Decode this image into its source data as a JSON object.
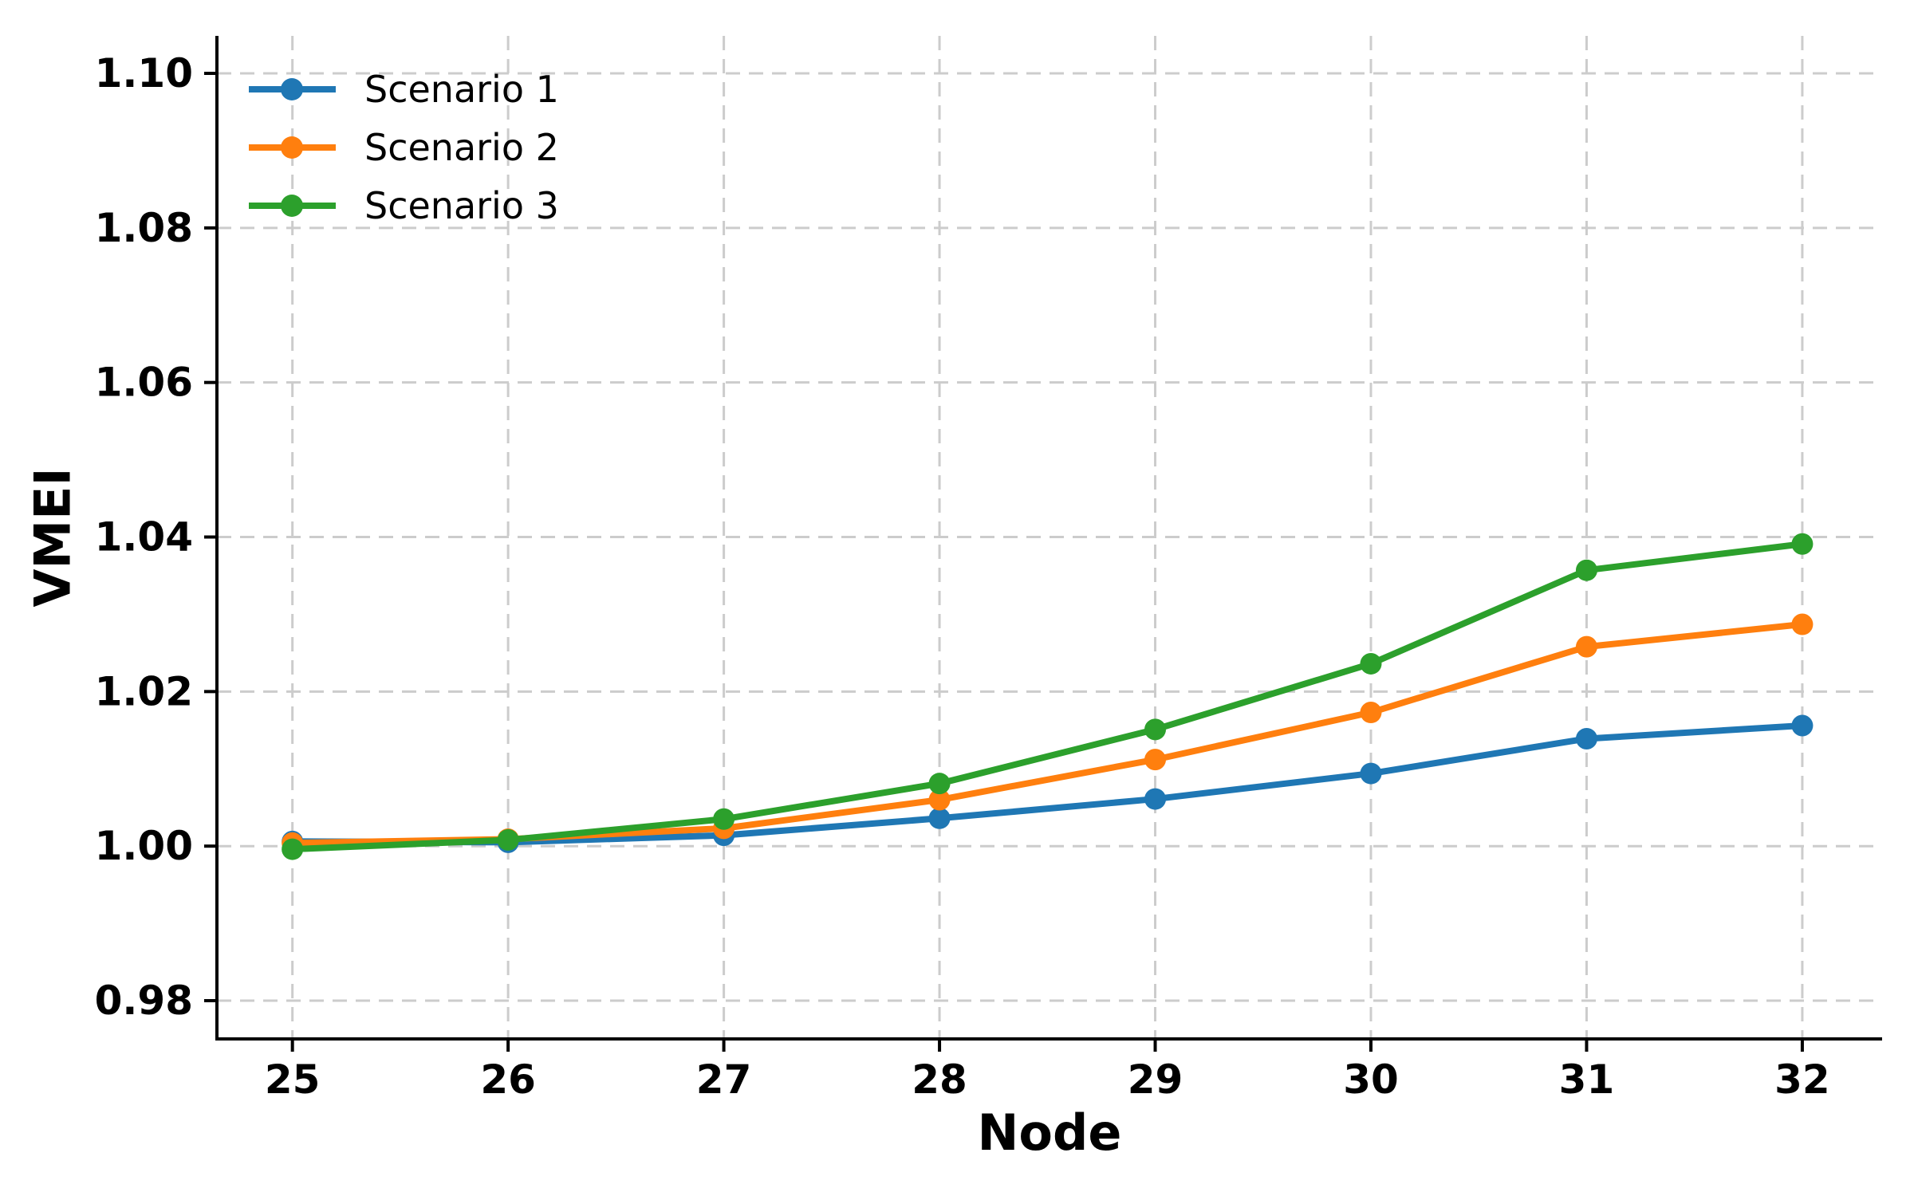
{
  "figure": {
    "background": "#ffffff"
  },
  "chart_data": {
    "type": "line",
    "title": "",
    "xlabel": "Node",
    "ylabel": "VMEI",
    "x": [
      25,
      26,
      27,
      28,
      29,
      30,
      31,
      32
    ],
    "x_tick_labels": [
      "25",
      "26",
      "27",
      "28",
      "29",
      "30",
      "31",
      "32"
    ],
    "y_ticks": [
      0.98,
      1.0,
      1.02,
      1.04,
      1.06,
      1.08,
      1.1
    ],
    "y_tick_labels": [
      "0.98",
      "1.00",
      "1.02",
      "1.04",
      "1.06",
      "1.08",
      "1.10"
    ],
    "xlim": [
      24.65,
      32.37
    ],
    "ylim": [
      0.97505,
      1.10485
    ],
    "grid": {
      "visible": true,
      "style": "dashed",
      "color": "#cccccc"
    },
    "axis_color": "#000000",
    "marker": "circle",
    "legend": {
      "position": "upper left",
      "frame": false,
      "entries": [
        "Scenario 1",
        "Scenario 2",
        "Scenario 3"
      ]
    },
    "series": [
      {
        "name": "Scenario 1",
        "color": "#1f77b4",
        "values": [
          1.0006,
          1.0005,
          1.0014,
          1.0036,
          1.0061,
          1.0094,
          1.0139,
          1.0156
        ]
      },
      {
        "name": "Scenario 2",
        "color": "#ff7f0e",
        "values": [
          1.0004,
          1.0009,
          1.0023,
          1.006,
          1.0112,
          1.0173,
          1.0258,
          1.0287
        ]
      },
      {
        "name": "Scenario 3",
        "color": "#2ca02c",
        "values": [
          0.9996,
          1.0008,
          1.0035,
          1.0081,
          1.0151,
          1.0236,
          1.0357,
          1.0391
        ]
      }
    ]
  }
}
